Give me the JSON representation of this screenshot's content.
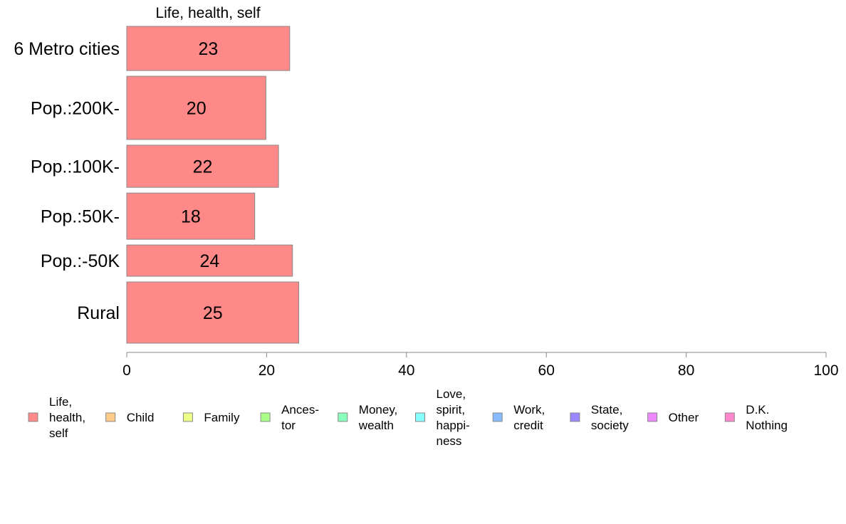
{
  "chart_data": {
    "type": "bar",
    "orientation": "horizontal",
    "panel_title": "Life, health, self",
    "categories": [
      "6 Metro cities",
      "Pop.:200K-",
      "Pop.:100K-",
      "Pop.:50K-",
      "Pop.:-50K",
      "Rural"
    ],
    "values": [
      23,
      20,
      22,
      18,
      24,
      25
    ],
    "bar_values_exact": [
      23.3,
      19.9,
      21.7,
      18.3,
      23.7,
      24.6
    ],
    "bar_relative_thickness": [
      0.65,
      0.93,
      0.62,
      0.68,
      0.46,
      0.9
    ],
    "bar_color": "#ff8888",
    "bar_border_color": "#888888",
    "xlim": [
      0,
      100
    ],
    "xticks": [
      0,
      20,
      40,
      60,
      80,
      100
    ],
    "grid": false,
    "legend_position": "bottom",
    "legend": [
      {
        "lines": [
          "Life,",
          "health,",
          "self"
        ],
        "color": "#ff8888"
      },
      {
        "lines": [
          "Child"
        ],
        "color": "#ffcc88"
      },
      {
        "lines": [
          "Family"
        ],
        "color": "#eeff88"
      },
      {
        "lines": [
          "Ances-",
          "tor"
        ],
        "color": "#aaff88"
      },
      {
        "lines": [
          "Money,",
          "wealth"
        ],
        "color": "#88ffbb"
      },
      {
        "lines": [
          "Love,",
          "spirit,",
          "happi-",
          "ness"
        ],
        "color": "#88ffff"
      },
      {
        "lines": [
          "Work,",
          "credit"
        ],
        "color": "#88bbff"
      },
      {
        "lines": [
          "State,",
          "society"
        ],
        "color": "#9988ff"
      },
      {
        "lines": [
          "Other"
        ],
        "color": "#ee88ff"
      },
      {
        "lines": [
          "D.K.",
          "Nothing"
        ],
        "color": "#ff88cc"
      }
    ]
  }
}
